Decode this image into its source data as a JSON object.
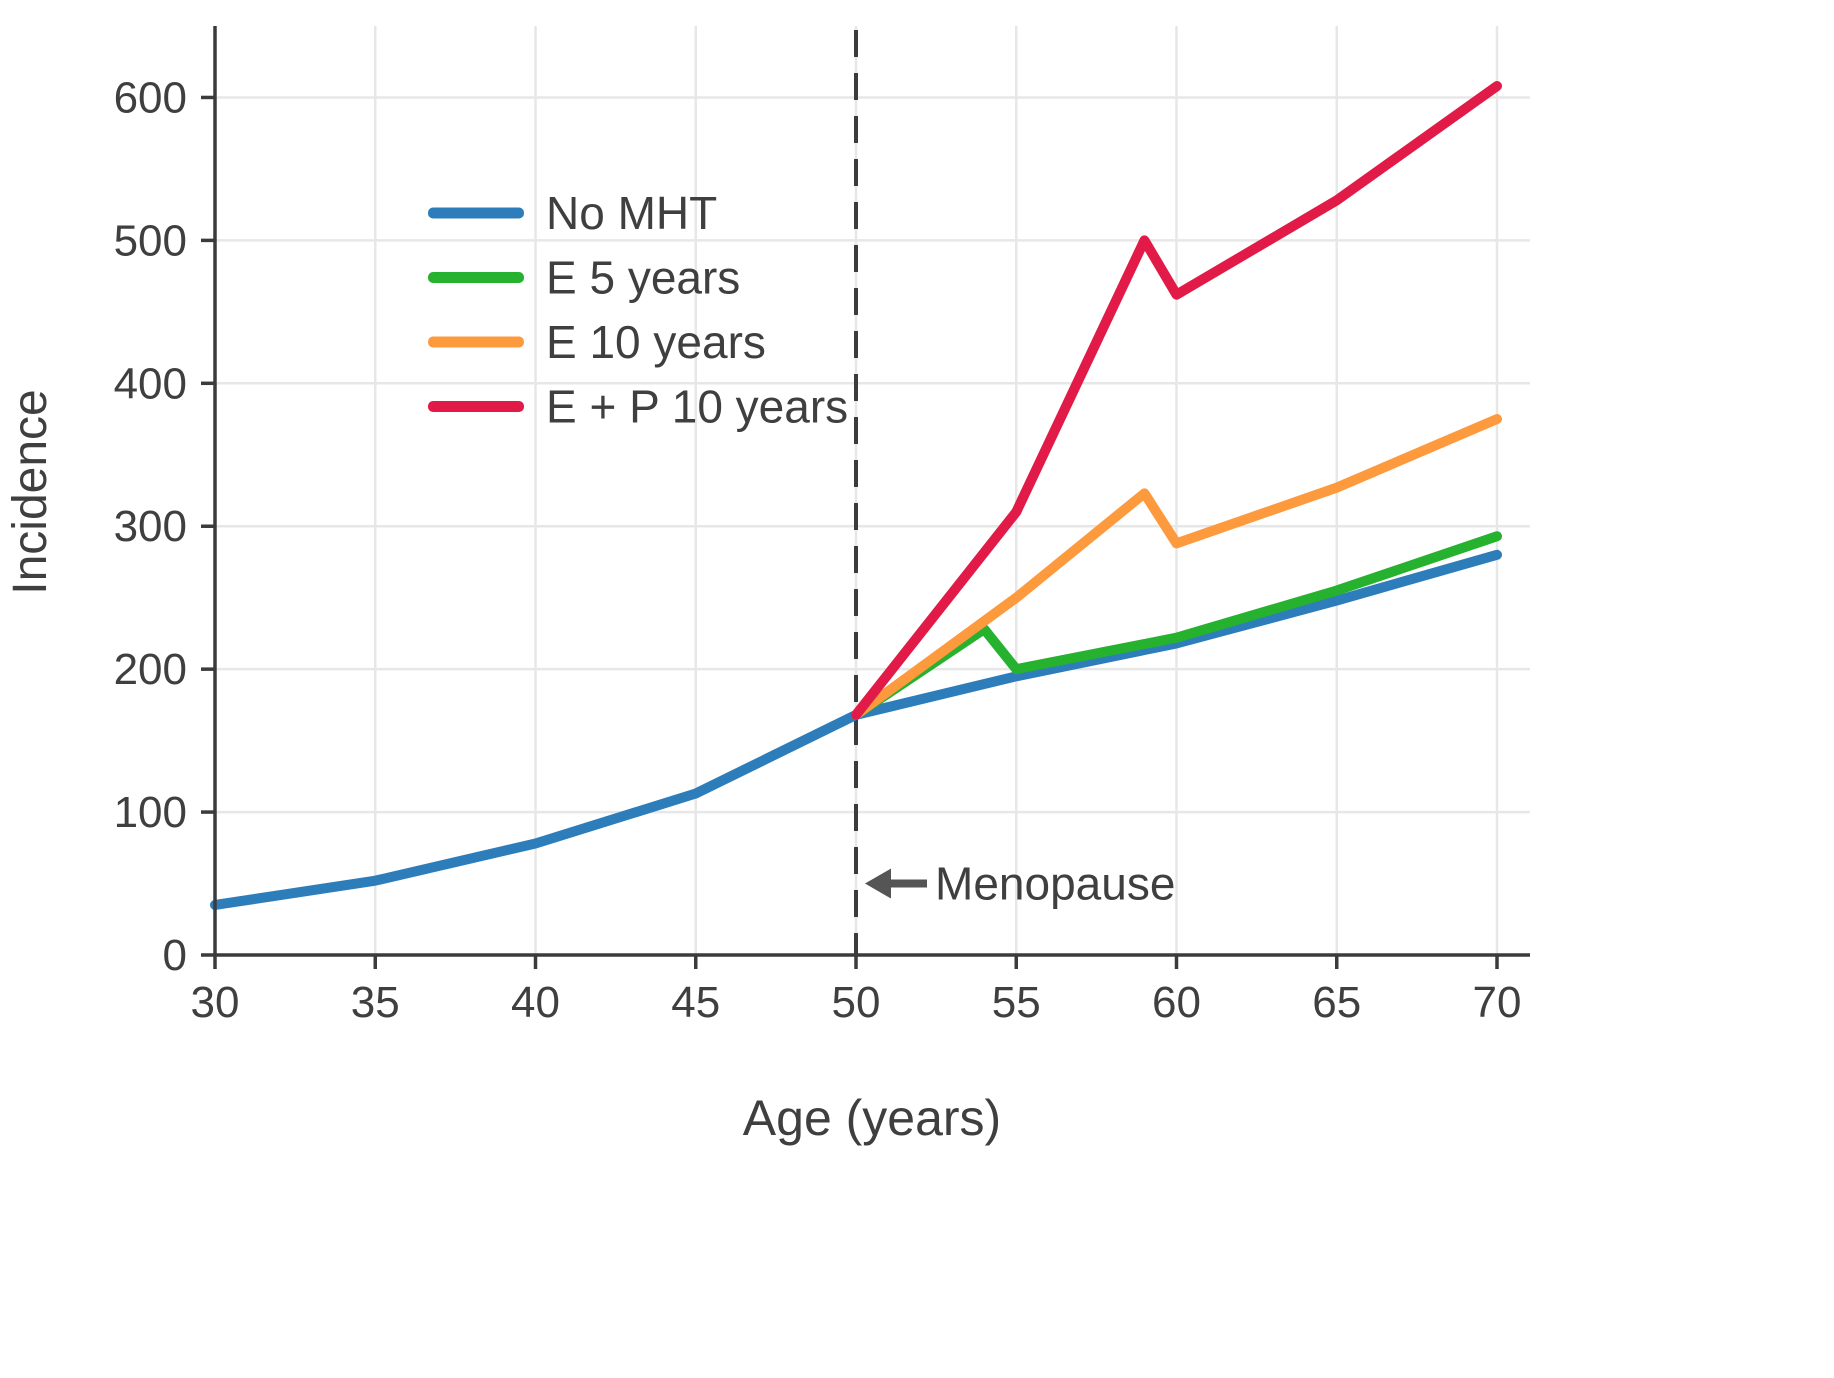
{
  "figure": {
    "background": "#ffffff"
  },
  "colors": {
    "grid": "#e7e7e7",
    "spine": "#3b3b3b",
    "text": "#3f3f3f",
    "vline": "#3c3c3c",
    "arrow": "#555555"
  },
  "chart_data": {
    "type": "line",
    "title": "",
    "xlabel": "Age (years)",
    "ylabel": "Incidence",
    "xlim": [
      30,
      70
    ],
    "ylim": [
      0,
      650
    ],
    "xticks": [
      30,
      35,
      40,
      45,
      50,
      55,
      60,
      65,
      70
    ],
    "yticks": [
      0,
      100,
      200,
      300,
      400,
      500,
      600
    ],
    "grid": true,
    "legend_position": "upper-left-inside",
    "series": [
      {
        "name": "No MHT",
        "color": "#2d7dbb",
        "x": [
          30,
          35,
          40,
          45,
          50,
          55,
          60,
          65,
          70
        ],
        "y": [
          35,
          52,
          78,
          113,
          168,
          195,
          218,
          248,
          280
        ]
      },
      {
        "name": "E 5 years",
        "color": "#26b12e",
        "x": [
          50,
          54,
          55,
          60,
          65,
          70
        ],
        "y": [
          168,
          228,
          200,
          222,
          255,
          293
        ]
      },
      {
        "name": "E 10 years",
        "color": "#fd9a3d",
        "x": [
          50,
          55,
          59,
          60,
          65,
          70
        ],
        "y": [
          168,
          250,
          323,
          288,
          327,
          375
        ]
      },
      {
        "name": "E + P 10 years",
        "color": "#e11a48",
        "x": [
          50,
          55,
          59,
          60,
          65,
          70
        ],
        "y": [
          168,
          310,
          500,
          462,
          528,
          608
        ]
      }
    ],
    "vline": {
      "x": 50,
      "style": "dashed"
    },
    "annotations": [
      {
        "text": "Menopause",
        "arrow": "left",
        "at_x": 50,
        "at_y": 50
      }
    ]
  }
}
